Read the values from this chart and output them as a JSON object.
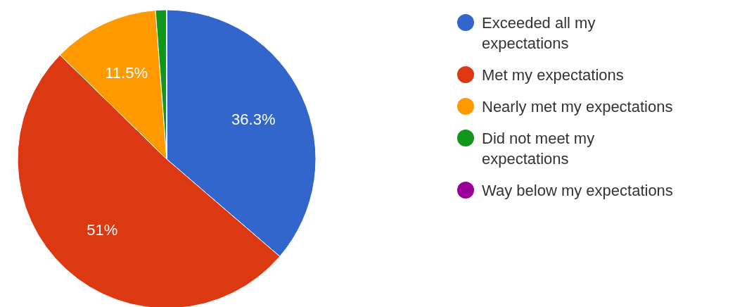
{
  "chart_data": {
    "type": "pie",
    "categories": [
      "Exceeded all my expectations",
      "Met my expectations",
      "Nearly met my expectations",
      "Did not meet my expectations",
      "Way below my expectations"
    ],
    "values": [
      36.3,
      51,
      11.5,
      1.2,
      0
    ],
    "colors": [
      "#3366cc",
      "#dc3912",
      "#ff9900",
      "#109618",
      "#990099"
    ],
    "value_labels": [
      "36.3%",
      "51%",
      "11.5%",
      null,
      null
    ],
    "legend": "right"
  }
}
